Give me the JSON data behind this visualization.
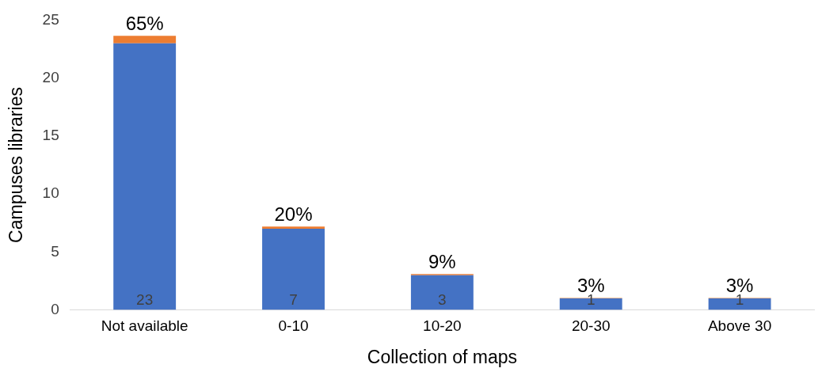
{
  "chart_data": {
    "type": "bar",
    "stacked": true,
    "xlabel": "Collection of maps",
    "ylabel": "Campuses libraries",
    "categories": [
      "Not available",
      "0-10",
      "10-20",
      "20-30",
      "Above 30"
    ],
    "series": [
      {
        "color": "#4472c4",
        "values": [
          23,
          7,
          3,
          1,
          1
        ],
        "value_labels": [
          "23",
          "7",
          "3",
          "1",
          "1"
        ]
      },
      {
        "color": "#ed7d31",
        "values": [
          0.65,
          0.2,
          0.09,
          0.03,
          0.03
        ],
        "value_labels": [
          "65%",
          "20%",
          "9%",
          "3%",
          "3%"
        ]
      }
    ],
    "ylim": [
      0,
      25
    ],
    "yticks": [
      0,
      5,
      10,
      15,
      20,
      25
    ],
    "grid": false,
    "legend": false
  }
}
